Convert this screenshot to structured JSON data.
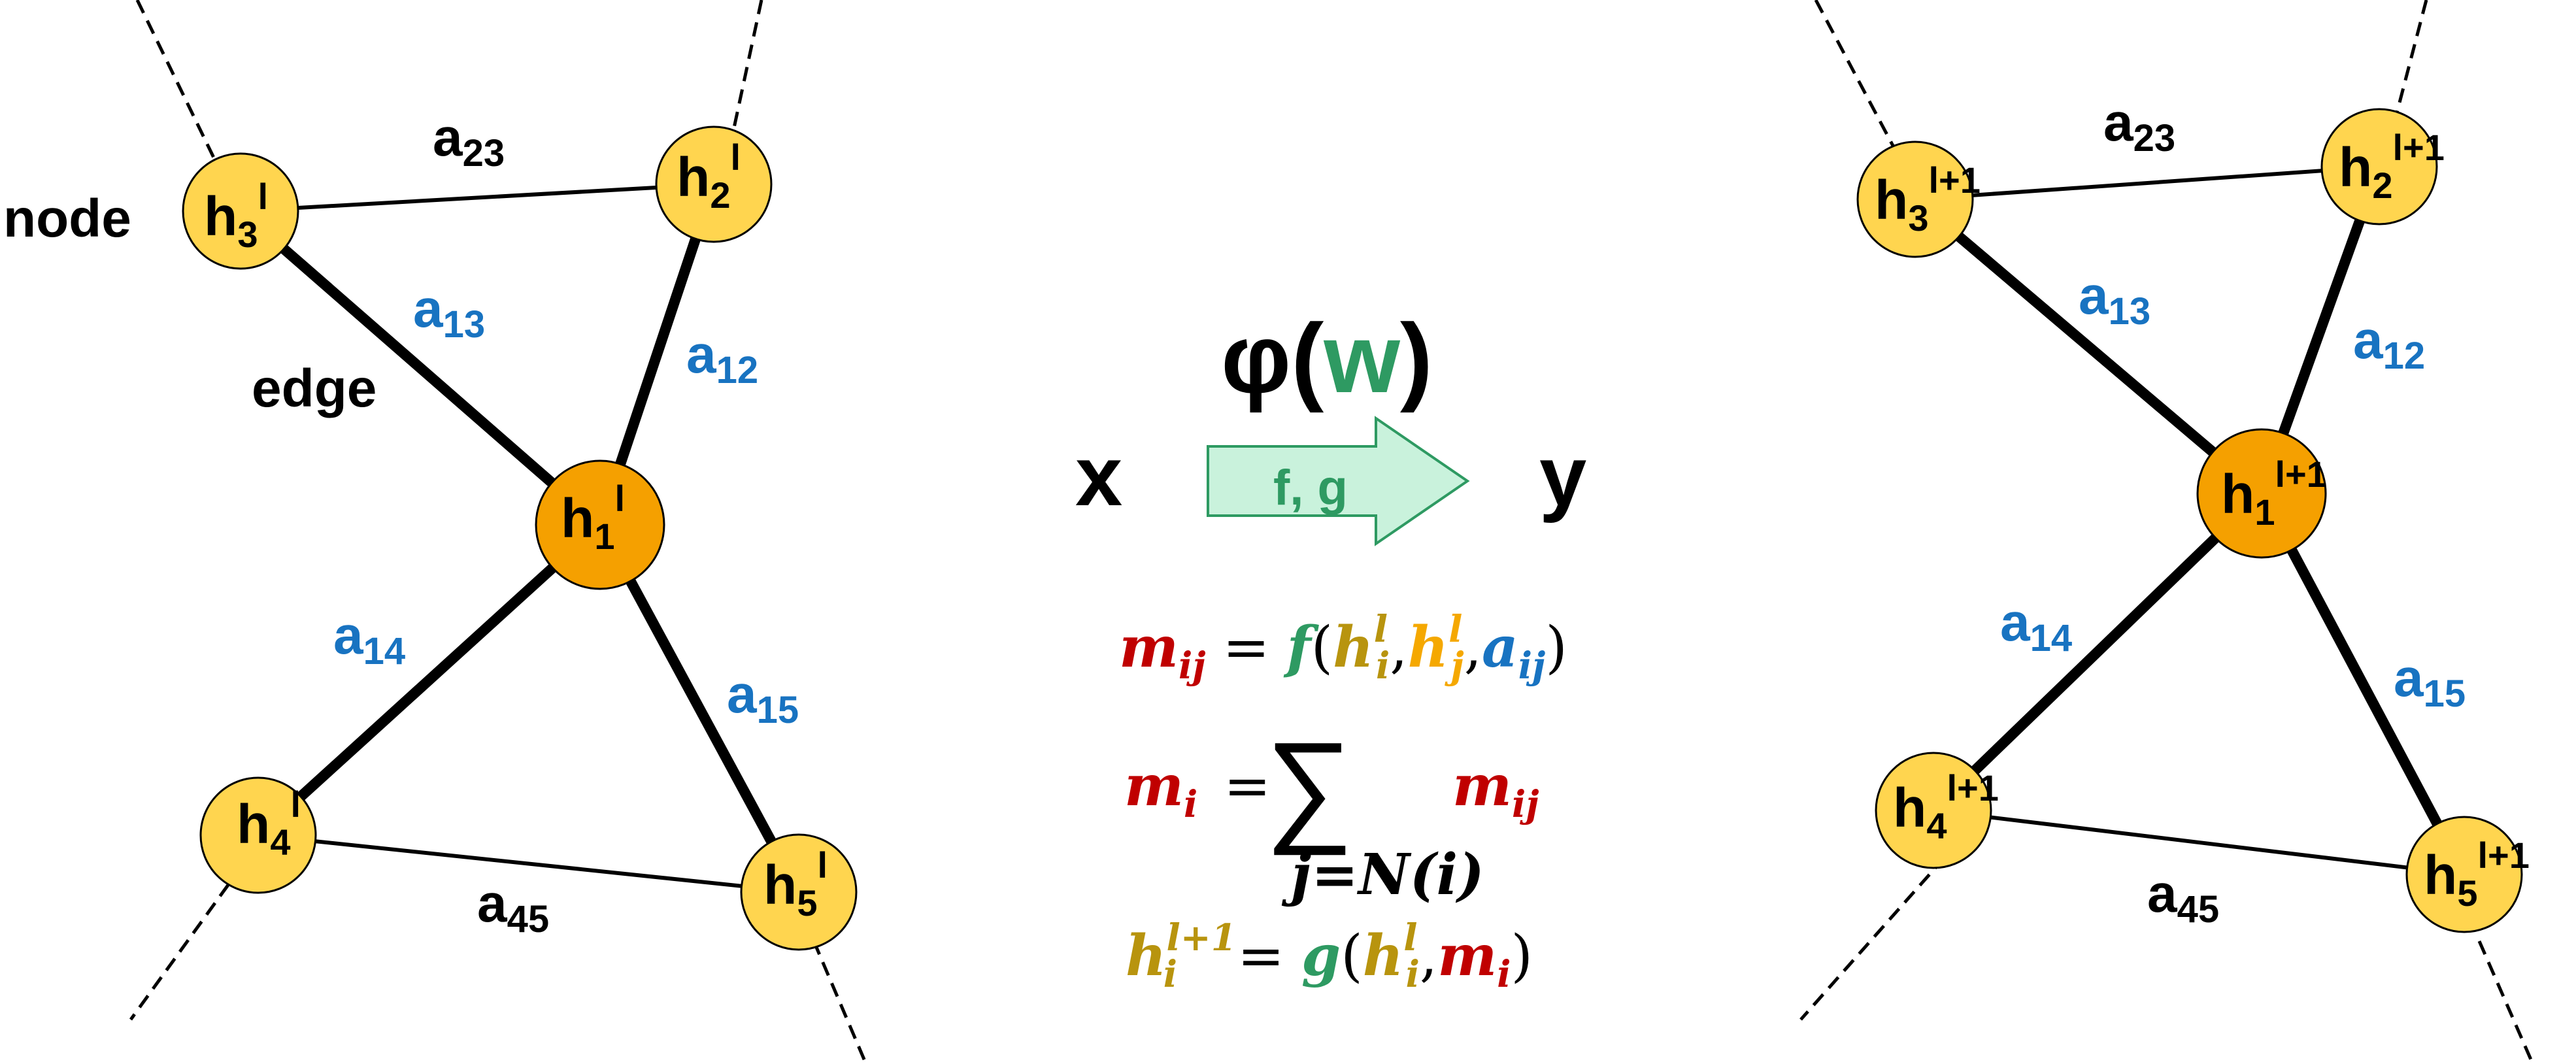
{
  "colors": {
    "node_fill": "#FFD54F",
    "center_node_fill": "#F5A000",
    "node_stroke": "#000000",
    "black_label": "#000000",
    "blue_label": "#1873C1",
    "green": "#2E9A62",
    "red": "#C00000",
    "olive": "#B8940E",
    "gold": "#F5A800",
    "arrow_fill": "#C9F2DC"
  },
  "left_graph": {
    "node_label": "node",
    "edge_label": "edge",
    "nodes": [
      {
        "id": "1",
        "base": "h",
        "sub": "1",
        "sup": "l"
      },
      {
        "id": "2",
        "base": "h",
        "sub": "2",
        "sup": "l"
      },
      {
        "id": "3",
        "base": "h",
        "sub": "3",
        "sup": "l"
      },
      {
        "id": "4",
        "base": "h",
        "sub": "4",
        "sup": "l"
      },
      {
        "id": "5",
        "base": "h",
        "sub": "5",
        "sup": "l"
      }
    ],
    "edges": [
      {
        "base": "a",
        "sub": "23",
        "color": "black"
      },
      {
        "base": "a",
        "sub": "13",
        "color": "blue"
      },
      {
        "base": "a",
        "sub": "12",
        "color": "blue"
      },
      {
        "base": "a",
        "sub": "14",
        "color": "blue"
      },
      {
        "base": "a",
        "sub": "15",
        "color": "blue"
      },
      {
        "base": "a",
        "sub": "45",
        "color": "black"
      }
    ]
  },
  "right_graph": {
    "nodes": [
      {
        "id": "1",
        "base": "h",
        "sub": "1",
        "sup": "l+1"
      },
      {
        "id": "2",
        "base": "h",
        "sub": "2",
        "sup": "l+1"
      },
      {
        "id": "3",
        "base": "h",
        "sub": "3",
        "sup": "l+1"
      },
      {
        "id": "4",
        "base": "h",
        "sub": "4",
        "sup": "l+1"
      },
      {
        "id": "5",
        "base": "h",
        "sub": "5",
        "sup": "l+1"
      }
    ],
    "edges": [
      {
        "base": "a",
        "sub": "23",
        "color": "black"
      },
      {
        "base": "a",
        "sub": "13",
        "color": "blue"
      },
      {
        "base": "a",
        "sub": "12",
        "color": "blue"
      },
      {
        "base": "a",
        "sub": "14",
        "color": "blue"
      },
      {
        "base": "a",
        "sub": "15",
        "color": "blue"
      },
      {
        "base": "a",
        "sub": "45",
        "color": "black"
      }
    ]
  },
  "center": {
    "input": "x",
    "output": "y",
    "phi": "φ",
    "open_paren": "(",
    "w": "w",
    "close_paren": ")",
    "arrow_label": "f, g"
  },
  "equations": {
    "eq1": {
      "lhs": "m",
      "lhs_sub": "ij",
      "equals": "=",
      "func": "f",
      "open": "(",
      "arg1": "h",
      "arg1_sub": "i",
      "arg1_sup": "l",
      "comma1": ",",
      "arg2": "h",
      "arg2_sub": "j",
      "arg2_sup": "l",
      "comma2": ",",
      "arg3": "a",
      "arg3_sub": "ij",
      "close": ")"
    },
    "eq2": {
      "lhs": "m",
      "lhs_sub": "i",
      "equals": "=",
      "sum": "∑",
      "sum_sub": "j=N(i)",
      "term": "m",
      "term_sub": "ij"
    },
    "eq3": {
      "lhs": "h",
      "lhs_sub": "i",
      "lhs_sup": "l+1",
      "equals": "=",
      "func": "g",
      "open": "(",
      "arg1": "h",
      "arg1_sub": "i",
      "arg1_sup": "l",
      "comma": ",",
      "arg2": "m",
      "arg2_sub": "i",
      "close": ")"
    }
  }
}
